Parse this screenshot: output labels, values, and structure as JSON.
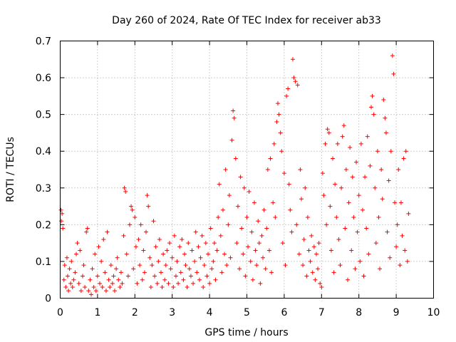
{
  "chart_data": {
    "type": "scatter",
    "title": "Day 260 of 2024, Rate Of TEC Index for receiver ab33",
    "xlabel": "GPS time / hours",
    "ylabel": "ROTI / TECUs",
    "xlim": [
      0,
      10
    ],
    "ylim": [
      0,
      0.7
    ],
    "xticks": [
      "0",
      "1",
      "2",
      "3",
      "4",
      "5",
      "6",
      "7",
      "8",
      "9",
      "10"
    ],
    "yticks": [
      "0",
      "0.1",
      "0.2",
      "0.3",
      "0.4",
      "0.5",
      "0.6",
      "0.7"
    ],
    "grid": true,
    "marker": "+",
    "marker_color": "#ff0000",
    "series": [
      {
        "name": "ROTI",
        "points": [
          [
            0.02,
            0.24
          ],
          [
            0.05,
            0.23
          ],
          [
            0.03,
            0.21
          ],
          [
            0.07,
            0.19
          ],
          [
            0.1,
            0.05
          ],
          [
            0.12,
            0.09
          ],
          [
            0.15,
            0.03
          ],
          [
            0.18,
            0.11
          ],
          [
            0.2,
            0.06
          ],
          [
            0.22,
            0.02
          ],
          [
            0.25,
            0.08
          ],
          [
            0.28,
            0.04
          ],
          [
            0.3,
            0.1
          ],
          [
            0.33,
            0.03
          ],
          [
            0.36,
            0.05
          ],
          [
            0.4,
            0.07
          ],
          [
            0.43,
            0.12
          ],
          [
            0.46,
            0.15
          ],
          [
            0.5,
            0.04
          ],
          [
            0.53,
            0.13
          ],
          [
            0.56,
            0.02
          ],
          [
            0.6,
            0.06
          ],
          [
            0.63,
            0.09
          ],
          [
            0.66,
            0.03
          ],
          [
            0.7,
            0.18
          ],
          [
            0.73,
            0.19
          ],
          [
            0.76,
            0.02
          ],
          [
            0.8,
            0.05
          ],
          [
            0.83,
            0.01
          ],
          [
            0.86,
            0.08
          ],
          [
            0.9,
            0.03
          ],
          [
            0.93,
            0.12
          ],
          [
            0.96,
            0.02
          ],
          [
            1.0,
            0.06
          ],
          [
            1.03,
            0.14
          ],
          [
            1.06,
            0.04
          ],
          [
            1.1,
            0.1
          ],
          [
            1.13,
            0.03
          ],
          [
            1.16,
            0.16
          ],
          [
            1.2,
            0.07
          ],
          [
            1.23,
            0.02
          ],
          [
            1.26,
            0.18
          ],
          [
            1.3,
            0.05
          ],
          [
            1.33,
            0.03
          ],
          [
            1.36,
            0.09
          ],
          [
            1.4,
            0.04
          ],
          [
            1.43,
            0.06
          ],
          [
            1.46,
            0.02
          ],
          [
            1.5,
            0.08
          ],
          [
            1.53,
            0.11
          ],
          [
            1.56,
            0.05
          ],
          [
            1.6,
            0.03
          ],
          [
            1.63,
            0.07
          ],
          [
            1.66,
            0.04
          ],
          [
            1.7,
            0.17
          ],
          [
            1.72,
            0.3
          ],
          [
            1.75,
            0.29
          ],
          [
            1.78,
            0.12
          ],
          [
            1.82,
            0.06
          ],
          [
            1.86,
            0.2
          ],
          [
            1.9,
            0.25
          ],
          [
            1.93,
            0.24
          ],
          [
            1.96,
            0.08
          ],
          [
            2.0,
            0.22
          ],
          [
            2.03,
            0.14
          ],
          [
            2.06,
            0.04
          ],
          [
            2.1,
            0.16
          ],
          [
            2.13,
            0.09
          ],
          [
            2.16,
            0.2
          ],
          [
            2.2,
            0.05
          ],
          [
            2.23,
            0.13
          ],
          [
            2.26,
            0.07
          ],
          [
            2.3,
            0.18
          ],
          [
            2.33,
            0.28
          ],
          [
            2.36,
            0.25
          ],
          [
            2.4,
            0.11
          ],
          [
            2.43,
            0.03
          ],
          [
            2.46,
            0.09
          ],
          [
            2.5,
            0.21
          ],
          [
            2.53,
            0.06
          ],
          [
            2.56,
            0.14
          ],
          [
            2.6,
            0.04
          ],
          [
            2.63,
            0.1
          ],
          [
            2.66,
            0.16
          ],
          [
            2.7,
            0.07
          ],
          [
            2.73,
            0.03
          ],
          [
            2.76,
            0.12
          ],
          [
            2.8,
            0.05
          ],
          [
            2.83,
            0.09
          ],
          [
            2.86,
            0.13
          ],
          [
            2.9,
            0.04
          ],
          [
            2.93,
            0.15
          ],
          [
            2.96,
            0.08
          ],
          [
            3.0,
            0.11
          ],
          [
            3.03,
            0.03
          ],
          [
            3.06,
            0.17
          ],
          [
            3.1,
            0.06
          ],
          [
            3.13,
            0.1
          ],
          [
            3.16,
            0.04
          ],
          [
            3.2,
            0.14
          ],
          [
            3.23,
            0.07
          ],
          [
            3.26,
            0.16
          ],
          [
            3.3,
            0.05
          ],
          [
            3.33,
            0.12
          ],
          [
            3.36,
            0.09
          ],
          [
            3.4,
            0.03
          ],
          [
            3.43,
            0.15
          ],
          [
            3.46,
            0.08
          ],
          [
            3.5,
            0.06
          ],
          [
            3.53,
            0.13
          ],
          [
            3.56,
            0.04
          ],
          [
            3.6,
            0.1
          ],
          [
            3.63,
            0.18
          ],
          [
            3.66,
            0.07
          ],
          [
            3.7,
            0.14
          ],
          [
            3.73,
            0.05
          ],
          [
            3.76,
            0.11
          ],
          [
            3.8,
            0.17
          ],
          [
            3.83,
            0.03
          ],
          [
            3.86,
            0.09
          ],
          [
            3.9,
            0.15
          ],
          [
            3.93,
            0.06
          ],
          [
            3.96,
            0.12
          ],
          [
            4.0,
            0.04
          ],
          [
            4.03,
            0.19
          ],
          [
            4.06,
            0.08
          ],
          [
            4.1,
            0.1
          ],
          [
            4.13,
            0.15
          ],
          [
            4.16,
            0.05
          ],
          [
            4.2,
            0.13
          ],
          [
            4.23,
            0.22
          ],
          [
            4.26,
            0.31
          ],
          [
            4.3,
            0.17
          ],
          [
            4.33,
            0.07
          ],
          [
            4.36,
            0.24
          ],
          [
            4.4,
            0.12
          ],
          [
            4.43,
            0.35
          ],
          [
            4.46,
            0.09
          ],
          [
            4.5,
            0.2
          ],
          [
            4.53,
            0.28
          ],
          [
            4.56,
            0.11
          ],
          [
            4.6,
            0.43
          ],
          [
            4.63,
            0.51
          ],
          [
            4.66,
            0.49
          ],
          [
            4.7,
            0.38
          ],
          [
            4.73,
            0.15
          ],
          [
            4.76,
            0.25
          ],
          [
            4.8,
            0.08
          ],
          [
            4.83,
            0.33
          ],
          [
            4.86,
            0.19
          ],
          [
            4.9,
            0.12
          ],
          [
            4.93,
            0.3
          ],
          [
            4.96,
            0.06
          ],
          [
            5.0,
            0.22
          ],
          [
            5.03,
            0.14
          ],
          [
            5.06,
            0.29
          ],
          [
            5.1,
            0.1
          ],
          [
            5.13,
            0.18
          ],
          [
            5.16,
            0.05
          ],
          [
            5.2,
            0.26
          ],
          [
            5.23,
            0.13
          ],
          [
            5.26,
            0.09
          ],
          [
            5.3,
            0.21
          ],
          [
            5.33,
            0.15
          ],
          [
            5.36,
            0.04
          ],
          [
            5.4,
            0.17
          ],
          [
            5.43,
            0.11
          ],
          [
            5.46,
            0.24
          ],
          [
            5.5,
            0.08
          ],
          [
            5.53,
            0.19
          ],
          [
            5.56,
            0.35
          ],
          [
            5.6,
            0.13
          ],
          [
            5.63,
            0.38
          ],
          [
            5.66,
            0.07
          ],
          [
            5.7,
            0.26
          ],
          [
            5.73,
            0.42
          ],
          [
            5.76,
            0.22
          ],
          [
            5.8,
            0.48
          ],
          [
            5.83,
            0.53
          ],
          [
            5.86,
            0.5
          ],
          [
            5.9,
            0.45
          ],
          [
            5.93,
            0.4
          ],
          [
            5.96,
            0.15
          ],
          [
            6.0,
            0.34
          ],
          [
            6.03,
            0.09
          ],
          [
            6.06,
            0.55
          ],
          [
            6.1,
            0.57
          ],
          [
            6.13,
            0.31
          ],
          [
            6.16,
            0.24
          ],
          [
            6.2,
            0.18
          ],
          [
            6.23,
            0.65
          ],
          [
            6.26,
            0.6
          ],
          [
            6.3,
            0.59
          ],
          [
            6.33,
            0.2
          ],
          [
            6.36,
            0.58
          ],
          [
            6.4,
            0.12
          ],
          [
            6.43,
            0.35
          ],
          [
            6.46,
            0.27
          ],
          [
            6.5,
            0.09
          ],
          [
            6.53,
            0.16
          ],
          [
            6.56,
            0.3
          ],
          [
            6.6,
            0.06
          ],
          [
            6.63,
            0.22
          ],
          [
            6.66,
            0.13
          ],
          [
            6.7,
            0.1
          ],
          [
            6.73,
            0.17
          ],
          [
            6.76,
            0.07
          ],
          [
            6.8,
            0.14
          ],
          [
            6.83,
            0.05
          ],
          [
            6.86,
            0.12
          ],
          [
            6.9,
            0.08
          ],
          [
            6.93,
            0.15
          ],
          [
            6.96,
            0.04
          ],
          [
            7.0,
            0.03
          ],
          [
            7.03,
            0.34
          ],
          [
            7.06,
            0.28
          ],
          [
            7.1,
            0.42
          ],
          [
            7.13,
            0.2
          ],
          [
            7.16,
            0.46
          ],
          [
            7.2,
            0.45
          ],
          [
            7.23,
            0.25
          ],
          [
            7.26,
            0.13
          ],
          [
            7.3,
            0.38
          ],
          [
            7.33,
            0.07
          ],
          [
            7.36,
            0.31
          ],
          [
            7.4,
            0.22
          ],
          [
            7.43,
            0.42
          ],
          [
            7.46,
            0.16
          ],
          [
            7.5,
            0.09
          ],
          [
            7.53,
            0.3
          ],
          [
            7.56,
            0.44
          ],
          [
            7.6,
            0.47
          ],
          [
            7.63,
            0.19
          ],
          [
            7.66,
            0.35
          ],
          [
            7.7,
            0.05
          ],
          [
            7.73,
            0.26
          ],
          [
            7.76,
            0.41
          ],
          [
            7.8,
            0.13
          ],
          [
            7.83,
            0.33
          ],
          [
            7.86,
            0.22
          ],
          [
            7.9,
            0.08
          ],
          [
            7.93,
            0.37
          ],
          [
            7.96,
            0.18
          ],
          [
            8.0,
            0.28
          ],
          [
            8.03,
            0.1
          ],
          [
            8.06,
            0.42
          ],
          [
            8.1,
            0.24
          ],
          [
            8.13,
            0.06
          ],
          [
            8.16,
            0.33
          ],
          [
            8.2,
            0.19
          ],
          [
            8.23,
            0.44
          ],
          [
            8.26,
            0.12
          ],
          [
            8.3,
            0.36
          ],
          [
            8.33,
            0.52
          ],
          [
            8.36,
            0.55
          ],
          [
            8.4,
            0.5
          ],
          [
            8.43,
            0.3
          ],
          [
            8.46,
            0.15
          ],
          [
            8.5,
            0.4
          ],
          [
            8.53,
            0.22
          ],
          [
            8.56,
            0.08
          ],
          [
            8.6,
            0.35
          ],
          [
            8.63,
            0.27
          ],
          [
            8.66,
            0.54
          ],
          [
            8.7,
            0.49
          ],
          [
            8.73,
            0.45
          ],
          [
            8.76,
            0.18
          ],
          [
            8.8,
            0.32
          ],
          [
            8.83,
            0.11
          ],
          [
            8.86,
            0.4
          ],
          [
            8.9,
            0.66
          ],
          [
            8.93,
            0.61
          ],
          [
            8.96,
            0.26
          ],
          [
            9.0,
            0.14
          ],
          [
            9.03,
            0.2
          ],
          [
            9.06,
            0.35
          ],
          [
            9.1,
            0.09
          ],
          [
            9.13,
            0.26
          ],
          [
            9.16,
            0.17
          ],
          [
            9.2,
            0.38
          ],
          [
            9.23,
            0.13
          ],
          [
            9.26,
            0.4
          ],
          [
            9.3,
            0.1
          ],
          [
            9.33,
            0.23
          ]
        ]
      }
    ]
  }
}
